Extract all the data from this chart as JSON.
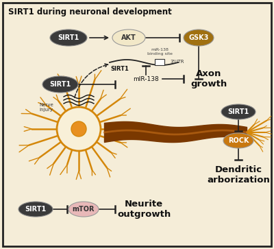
{
  "title": "SIRT1 during neuronal development",
  "bg_color": "#f5edd8",
  "border_color": "#222222",
  "dark_ellipse_color": "#3a3a3a",
  "dark_ellipse_grad": "#555555",
  "dark_ellipse_text": "#ffffff",
  "akt_fill": "#f2e8c8",
  "akt_text": "#333333",
  "gsk3_fill": "#a07010",
  "gsk3_text": "#ffffff",
  "rock_fill": "#c87810",
  "rock_text": "#ffffff",
  "mtor_fill": "#e8b8b8",
  "mtor_text": "#333333",
  "axon_text": "Axon\ngrowth",
  "neurite_text": "Neurite\noutgrowth",
  "dendritic_text": "Dendritic\narborization",
  "nerve_text": "Nerve\ninjury",
  "neuron_orange": "#d4870a",
  "neuron_dark": "#7a3800",
  "neuron_soma_white": "#f8f0d8",
  "neuron_nucleus": "#e89020",
  "line_color": "#222222"
}
